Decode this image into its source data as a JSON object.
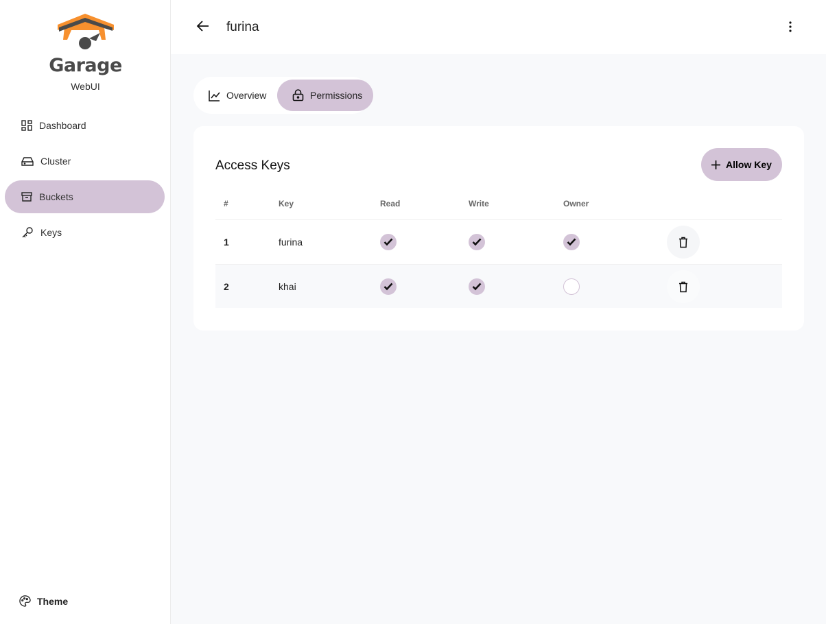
{
  "app": {
    "brand": "Garage",
    "subtitle": "WebUI",
    "logo_colors": {
      "orange": "#f7902e",
      "gray": "#4a4a4a"
    }
  },
  "sidebar": {
    "items": [
      {
        "label": "Dashboard",
        "icon": "dashboard-icon"
      },
      {
        "label": "Cluster",
        "icon": "hard-drive-icon"
      },
      {
        "label": "Buckets",
        "icon": "archive-icon",
        "active": true
      },
      {
        "label": "Keys",
        "icon": "key-icon"
      }
    ],
    "theme_label": "Theme"
  },
  "header": {
    "title": "furina"
  },
  "tabs": [
    {
      "label": "Overview",
      "icon": "chart-line-icon"
    },
    {
      "label": "Permissions",
      "icon": "lock-icon",
      "active": true
    }
  ],
  "access_keys": {
    "title": "Access Keys",
    "allow_label": "Allow Key",
    "columns": [
      "#",
      "Key",
      "Read",
      "Write",
      "Owner"
    ],
    "rows": [
      {
        "num": "1",
        "key": "furina",
        "read": true,
        "write": true,
        "owner": true
      },
      {
        "num": "2",
        "key": "khai",
        "read": true,
        "write": true,
        "owner": false
      }
    ]
  },
  "accent": "#d3c3d7"
}
